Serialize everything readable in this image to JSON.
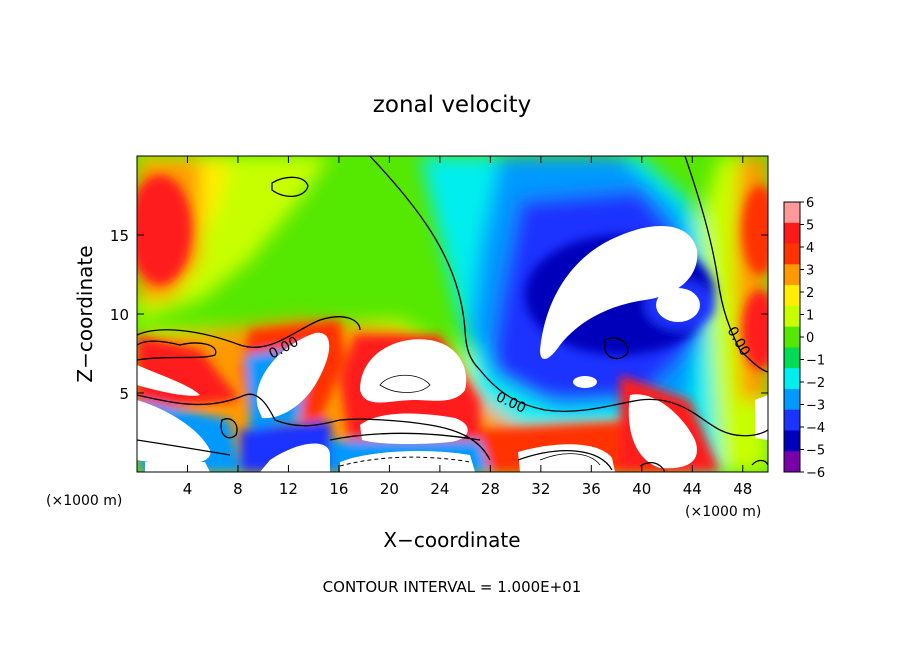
{
  "chart_data": {
    "type": "heatmap",
    "title": "zonal velocity",
    "xlabel": "X−coordinate",
    "ylabel": "Z−coordinate",
    "x_unit_label": "(×1000 m)",
    "z_unit_label": "(×1000 m)",
    "xlim": [
      0,
      50
    ],
    "zlim": [
      0,
      20
    ],
    "x_ticks": [
      4,
      8,
      12,
      16,
      20,
      24,
      28,
      32,
      36,
      40,
      44,
      48
    ],
    "z_ticks": [
      5,
      10,
      15
    ],
    "colorbar": {
      "range": [
        -6,
        6
      ],
      "ticks": [
        6,
        5,
        4,
        3,
        2,
        1,
        0,
        -1,
        -2,
        -3,
        -4,
        -5,
        -6
      ],
      "tick_labels": [
        "6",
        "5",
        "4",
        "3",
        "2",
        "1",
        "0",
        "−1",
        "−2",
        "−3",
        "−4",
        "−5",
        "−6"
      ],
      "colors": [
        "#ff9999",
        "#ff1a1a",
        "#ff3300",
        "#ff9900",
        "#ffee00",
        "#c8ff00",
        "#55e800",
        "#00dd55",
        "#00eeee",
        "#0099ff",
        "#1a33ff",
        "#0000bb",
        "#7700aa"
      ]
    },
    "contour_labels": [
      "0.00",
      "0.00",
      "0.00"
    ],
    "contour_interval_text": "CONTOUR INTERVAL = 1.000E+01"
  }
}
